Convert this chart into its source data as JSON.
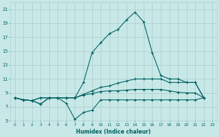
{
  "xlabel": "Humidex (Indice chaleur)",
  "bg_color": "#c8e8e8",
  "grid_color": "#b0d0d0",
  "line_color": "#006060",
  "xlim_min": -0.5,
  "xlim_max": 23.5,
  "ylim_min": 5,
  "ylim_max": 22,
  "xticks": [
    0,
    1,
    2,
    3,
    4,
    5,
    6,
    7,
    8,
    9,
    10,
    11,
    12,
    13,
    14,
    15,
    16,
    17,
    18,
    19,
    20,
    21,
    22,
    23
  ],
  "yticks": [
    5,
    7,
    9,
    11,
    13,
    15,
    17,
    19,
    21
  ],
  "curve_main_x": [
    0,
    1,
    2,
    3,
    4,
    5,
    6,
    7,
    8,
    9,
    10,
    11,
    12,
    13,
    14,
    15,
    16,
    17,
    18,
    19,
    20,
    21,
    22
  ],
  "curve_main_y": [
    8.3,
    8.0,
    7.9,
    7.4,
    8.3,
    8.3,
    8.3,
    8.3,
    10.5,
    14.8,
    16.2,
    17.5,
    18.1,
    19.5,
    20.6,
    19.2,
    14.8,
    11.5,
    11.0,
    11.0,
    10.5,
    10.5,
    8.3
  ],
  "curve_low_x": [
    0,
    1,
    2,
    3,
    4,
    5,
    6,
    7,
    8,
    9,
    10,
    11,
    12,
    13,
    14,
    15,
    16,
    17,
    18,
    19,
    20,
    21,
    22
  ],
  "curve_low_y": [
    8.3,
    8.0,
    7.9,
    7.4,
    8.3,
    8.3,
    7.5,
    5.2,
    6.2,
    6.5,
    8.0,
    8.0,
    8.0,
    8.0,
    8.0,
    8.0,
    8.0,
    8.0,
    8.0,
    8.0,
    8.0,
    8.0,
    8.3
  ],
  "curve_mid1_x": [
    0,
    1,
    2,
    3,
    4,
    5,
    6,
    7,
    8,
    9,
    10,
    11,
    12,
    13,
    14,
    15,
    16,
    17,
    18,
    19,
    20,
    21,
    22
  ],
  "curve_mid1_y": [
    8.3,
    8.0,
    7.9,
    8.3,
    8.3,
    8.3,
    8.3,
    8.3,
    8.8,
    9.3,
    9.8,
    10.0,
    10.4,
    10.7,
    11.0,
    11.0,
    11.0,
    11.0,
    10.5,
    10.5,
    10.5,
    10.5,
    8.3
  ],
  "curve_mid2_x": [
    0,
    1,
    2,
    3,
    4,
    5,
    6,
    7,
    8,
    9,
    10,
    11,
    12,
    13,
    14,
    15,
    16,
    17,
    18,
    19,
    20,
    21,
    22
  ],
  "curve_mid2_y": [
    8.3,
    8.0,
    7.9,
    8.3,
    8.3,
    8.3,
    8.3,
    8.3,
    8.7,
    8.9,
    9.2,
    9.3,
    9.3,
    9.4,
    9.5,
    9.5,
    9.5,
    9.5,
    9.3,
    9.1,
    9.0,
    9.0,
    8.3
  ]
}
